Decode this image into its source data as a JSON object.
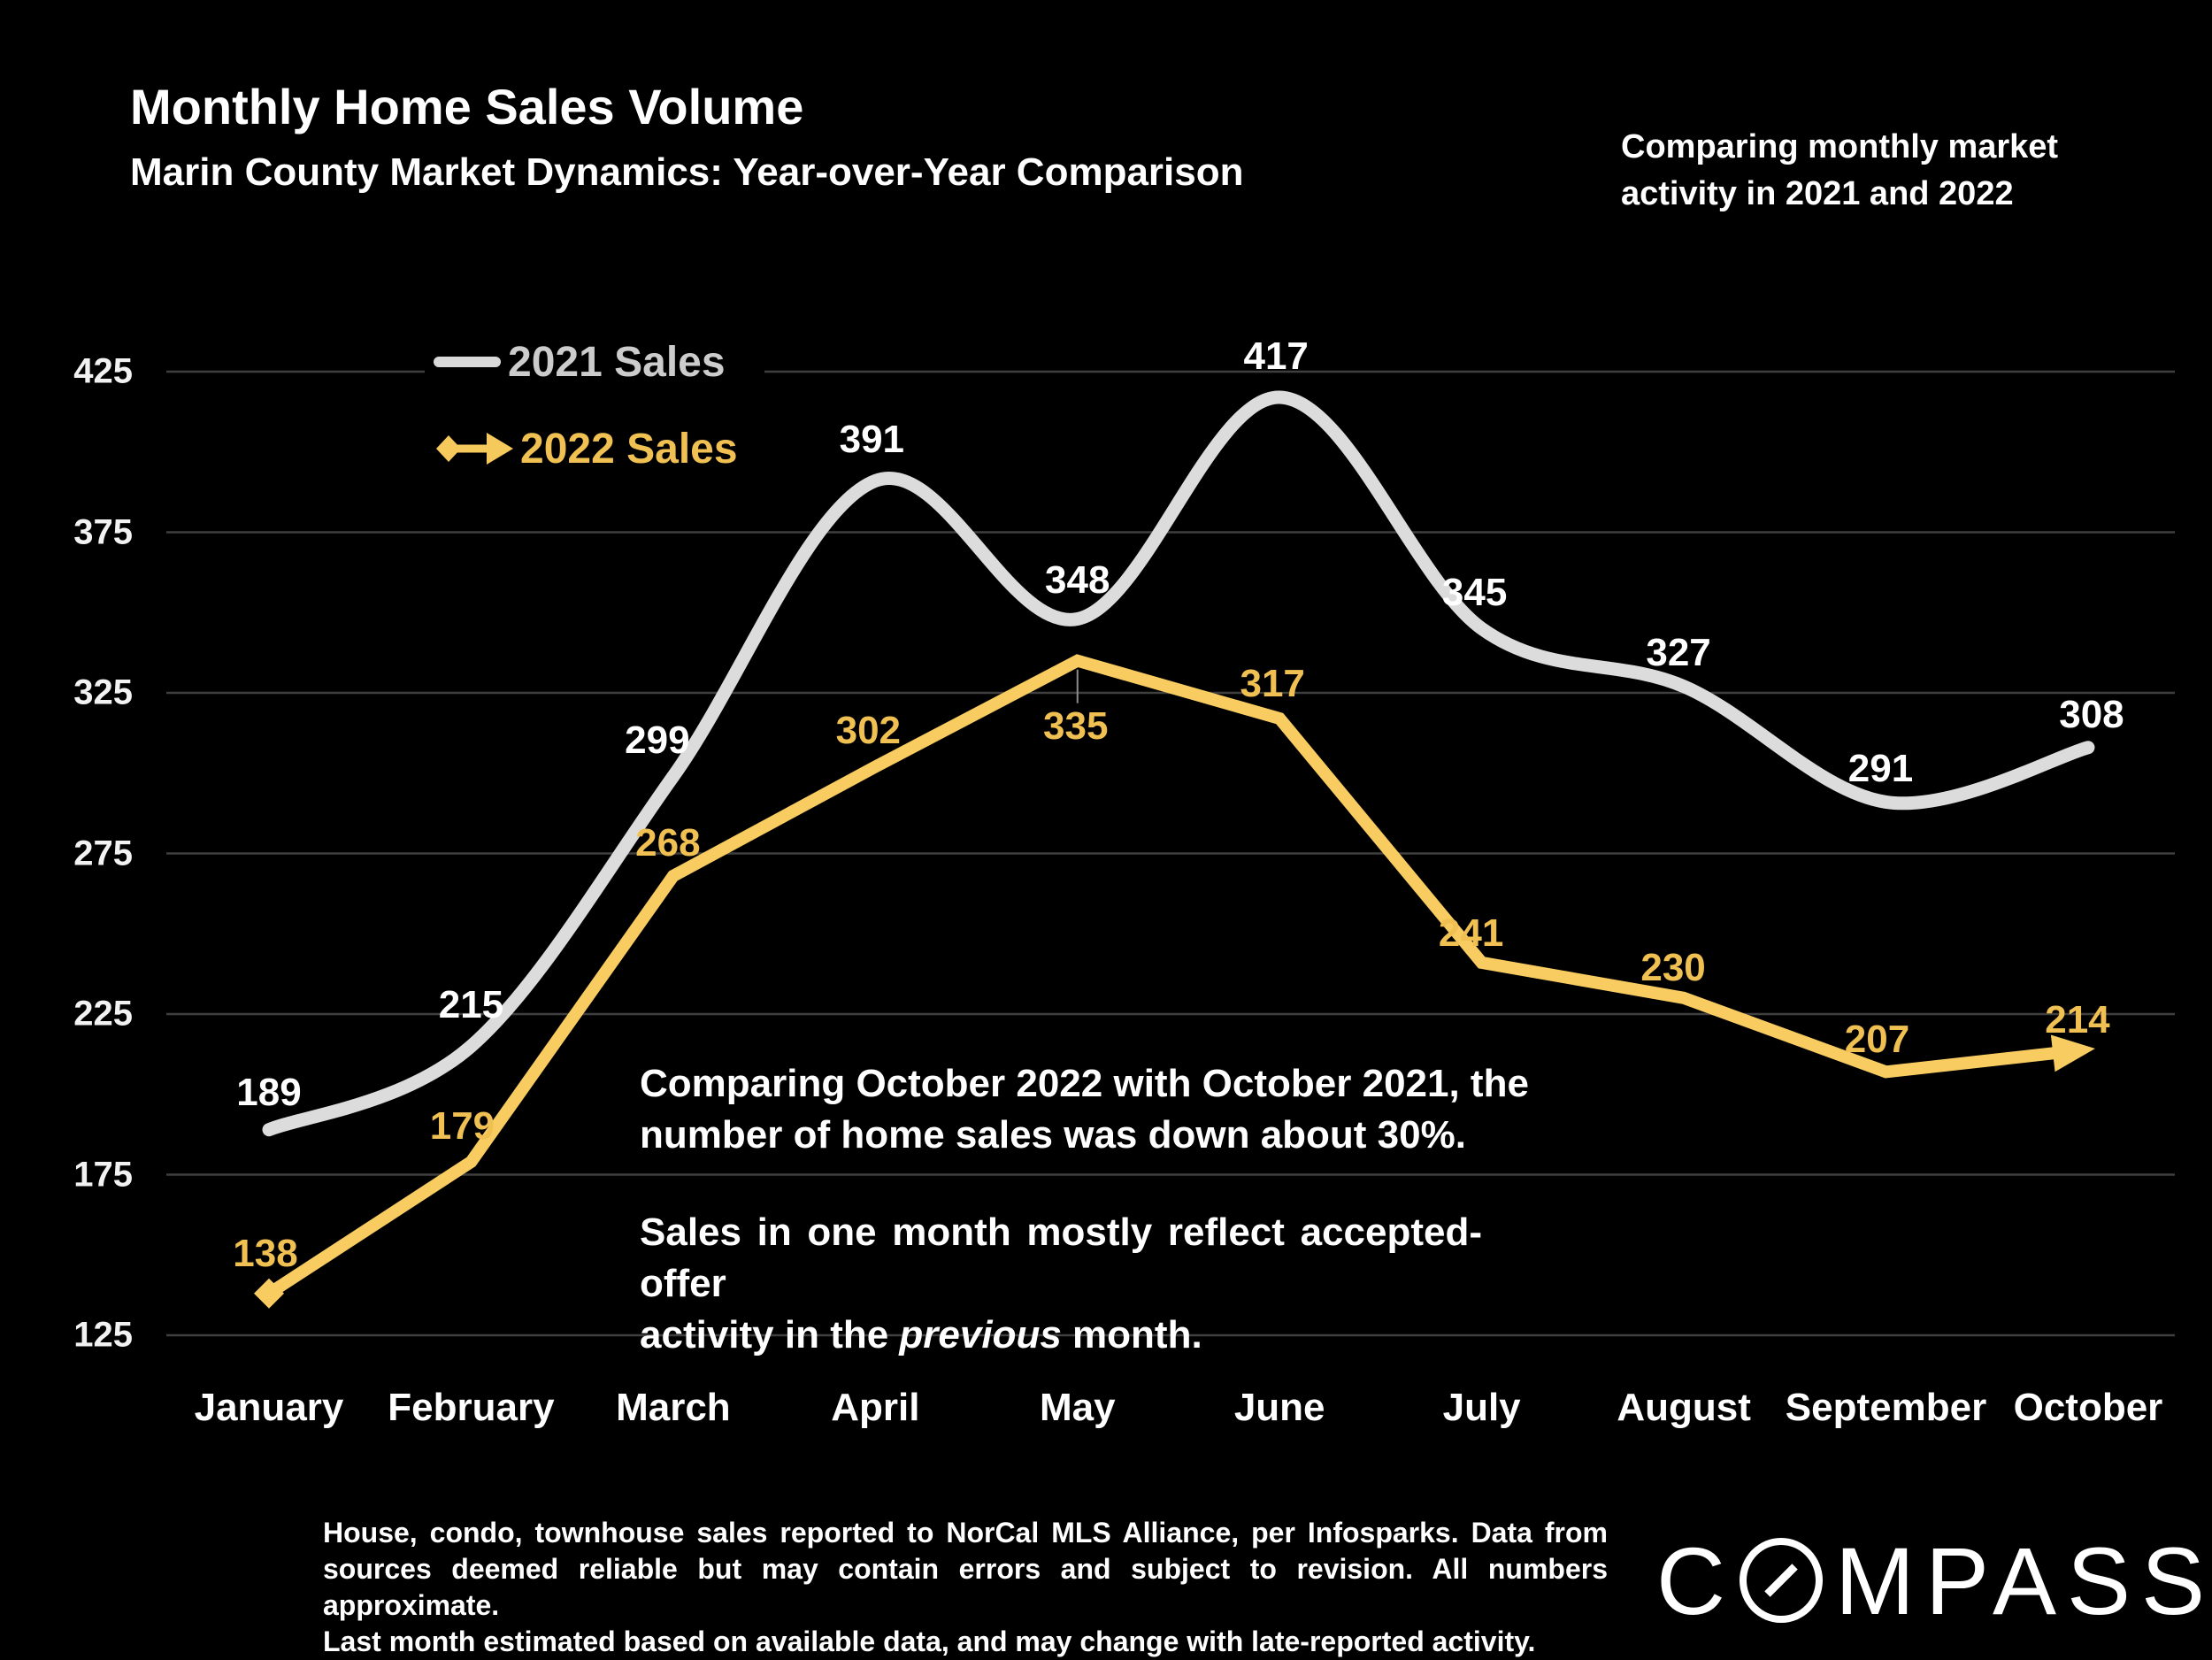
{
  "header": {
    "title": "Monthly Home Sales Volume",
    "subtitle": "Marin County Market Dynamics: Year-over-Year Comparison",
    "note": "Comparing monthly market activity in 2021 and 2022"
  },
  "chart_data": {
    "type": "line",
    "title": "Monthly Home Sales Volume",
    "categories": [
      "January",
      "February",
      "March",
      "April",
      "May",
      "June",
      "July",
      "August",
      "September",
      "October"
    ],
    "yticks": [
      425,
      375,
      325,
      275,
      225,
      175,
      125
    ],
    "ylim": [
      125,
      425
    ],
    "grid": "horizontal-only",
    "legend_position": "inside-top-left",
    "series": [
      {
        "name": "2021 Sales",
        "color": "#DCDCDC",
        "label_color": "#FFFFFF",
        "line_style": "smooth",
        "values": [
          189,
          215,
          299,
          391,
          348,
          417,
          345,
          327,
          291,
          308
        ],
        "label_offsets": [
          [
            0,
            -42
          ],
          [
            0,
            -46
          ],
          [
            -18,
            -40
          ],
          [
            -4,
            -46
          ],
          [
            0,
            -44
          ],
          [
            -4,
            -46
          ],
          [
            -8,
            -40
          ],
          [
            -6,
            -38
          ],
          [
            -6,
            -37
          ],
          [
            4,
            -37
          ]
        ]
      },
      {
        "name": "2022 Sales",
        "color": "#F8CC60",
        "label_color": "#F0C152",
        "line_style": "straight",
        "start_marker": "diamond",
        "end_marker": "arrow",
        "values": [
          138,
          179,
          268,
          302,
          335,
          317,
          241,
          230,
          207,
          214
        ],
        "label_offsets": [
          [
            -4,
            -45
          ],
          [
            -10,
            -40
          ],
          [
            -6,
            -37
          ],
          [
            -8,
            -40
          ],
          [
            -2,
            74
          ],
          [
            -8,
            -39
          ],
          [
            -12,
            -33
          ],
          [
            -12,
            -34
          ],
          [
            -10,
            -36
          ],
          [
            -12,
            -33
          ]
        ]
      }
    ]
  },
  "annotation": {
    "para1": [
      "Comparing October 2022 with October 2021, the",
      "number of home sales was down about 30%."
    ],
    "para2_line1": "Sales in one month mostly reflect accepted-offer",
    "para2_line2_pre": "activity in the ",
    "para2_line2_italic": "previous",
    "para2_line2_post": " month."
  },
  "footer": {
    "lines": [
      "House, condo, townhouse sales reported to NorCal MLS Alliance, per Infosparks. Data from",
      "sources deemed reliable but may contain errors and subject to revision. All numbers approximate.",
      "Last month estimated based on available data, and may change with late-reported activity."
    ],
    "logo": "COMPASS"
  },
  "colors": {
    "background": "#000000",
    "grid": "#3F3F3F",
    "leader_line": "#8C8C8C",
    "axis_text": "#F2F2F2",
    "series_2021": "#DCDCDC",
    "series_2022": "#F8CC60"
  }
}
